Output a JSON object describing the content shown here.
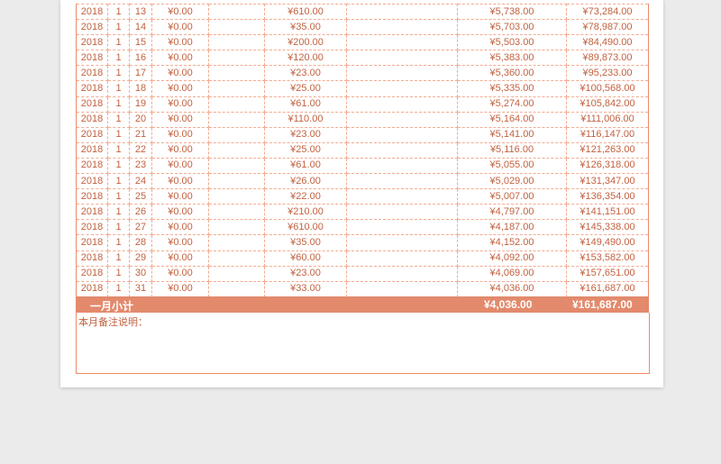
{
  "rows": [
    [
      "2018",
      "1",
      "13",
      "¥0.00",
      "",
      "¥610.00",
      "",
      "¥5,738.00",
      "¥73,284.00"
    ],
    [
      "2018",
      "1",
      "14",
      "¥0.00",
      "",
      "¥35.00",
      "",
      "¥5,703.00",
      "¥78,987.00"
    ],
    [
      "2018",
      "1",
      "15",
      "¥0.00",
      "",
      "¥200.00",
      "",
      "¥5,503.00",
      "¥84,490.00"
    ],
    [
      "2018",
      "1",
      "16",
      "¥0.00",
      "",
      "¥120.00",
      "",
      "¥5,383.00",
      "¥89,873.00"
    ],
    [
      "2018",
      "1",
      "17",
      "¥0.00",
      "",
      "¥23.00",
      "",
      "¥5,360.00",
      "¥95,233.00"
    ],
    [
      "2018",
      "1",
      "18",
      "¥0.00",
      "",
      "¥25.00",
      "",
      "¥5,335.00",
      "¥100,568.00"
    ],
    [
      "2018",
      "1",
      "19",
      "¥0.00",
      "",
      "¥61.00",
      "",
      "¥5,274.00",
      "¥105,842.00"
    ],
    [
      "2018",
      "1",
      "20",
      "¥0.00",
      "",
      "¥110.00",
      "",
      "¥5,164.00",
      "¥111,006.00"
    ],
    [
      "2018",
      "1",
      "21",
      "¥0.00",
      "",
      "¥23.00",
      "",
      "¥5,141.00",
      "¥116,147.00"
    ],
    [
      "2018",
      "1",
      "22",
      "¥0.00",
      "",
      "¥25.00",
      "",
      "¥5,116.00",
      "¥121,263.00"
    ],
    [
      "2018",
      "1",
      "23",
      "¥0.00",
      "",
      "¥61.00",
      "",
      "¥5,055.00",
      "¥126,318.00"
    ],
    [
      "2018",
      "1",
      "24",
      "¥0.00",
      "",
      "¥26.00",
      "",
      "¥5,029.00",
      "¥131,347.00"
    ],
    [
      "2018",
      "1",
      "25",
      "¥0.00",
      "",
      "¥22.00",
      "",
      "¥5,007.00",
      "¥136,354.00"
    ],
    [
      "2018",
      "1",
      "26",
      "¥0.00",
      "",
      "¥210.00",
      "",
      "¥4,797.00",
      "¥141,151.00"
    ],
    [
      "2018",
      "1",
      "27",
      "¥0.00",
      "",
      "¥610.00",
      "",
      "¥4,187.00",
      "¥145,338.00"
    ],
    [
      "2018",
      "1",
      "28",
      "¥0.00",
      "",
      "¥35.00",
      "",
      "¥4,152.00",
      "¥149,490.00"
    ],
    [
      "2018",
      "1",
      "29",
      "¥0.00",
      "",
      "¥60.00",
      "",
      "¥4,092.00",
      "¥153,582.00"
    ],
    [
      "2018",
      "1",
      "30",
      "¥0.00",
      "",
      "¥23.00",
      "",
      "¥4,069.00",
      "¥157,651.00"
    ],
    [
      "2018",
      "1",
      "31",
      "¥0.00",
      "",
      "¥33.00",
      "",
      "¥4,036.00",
      "¥161,687.00"
    ]
  ],
  "subtotal": {
    "label": "一月小计",
    "balance": "¥4,036.00",
    "cumulative": "¥161,687.00"
  },
  "note_label": "本月备注说明："
}
